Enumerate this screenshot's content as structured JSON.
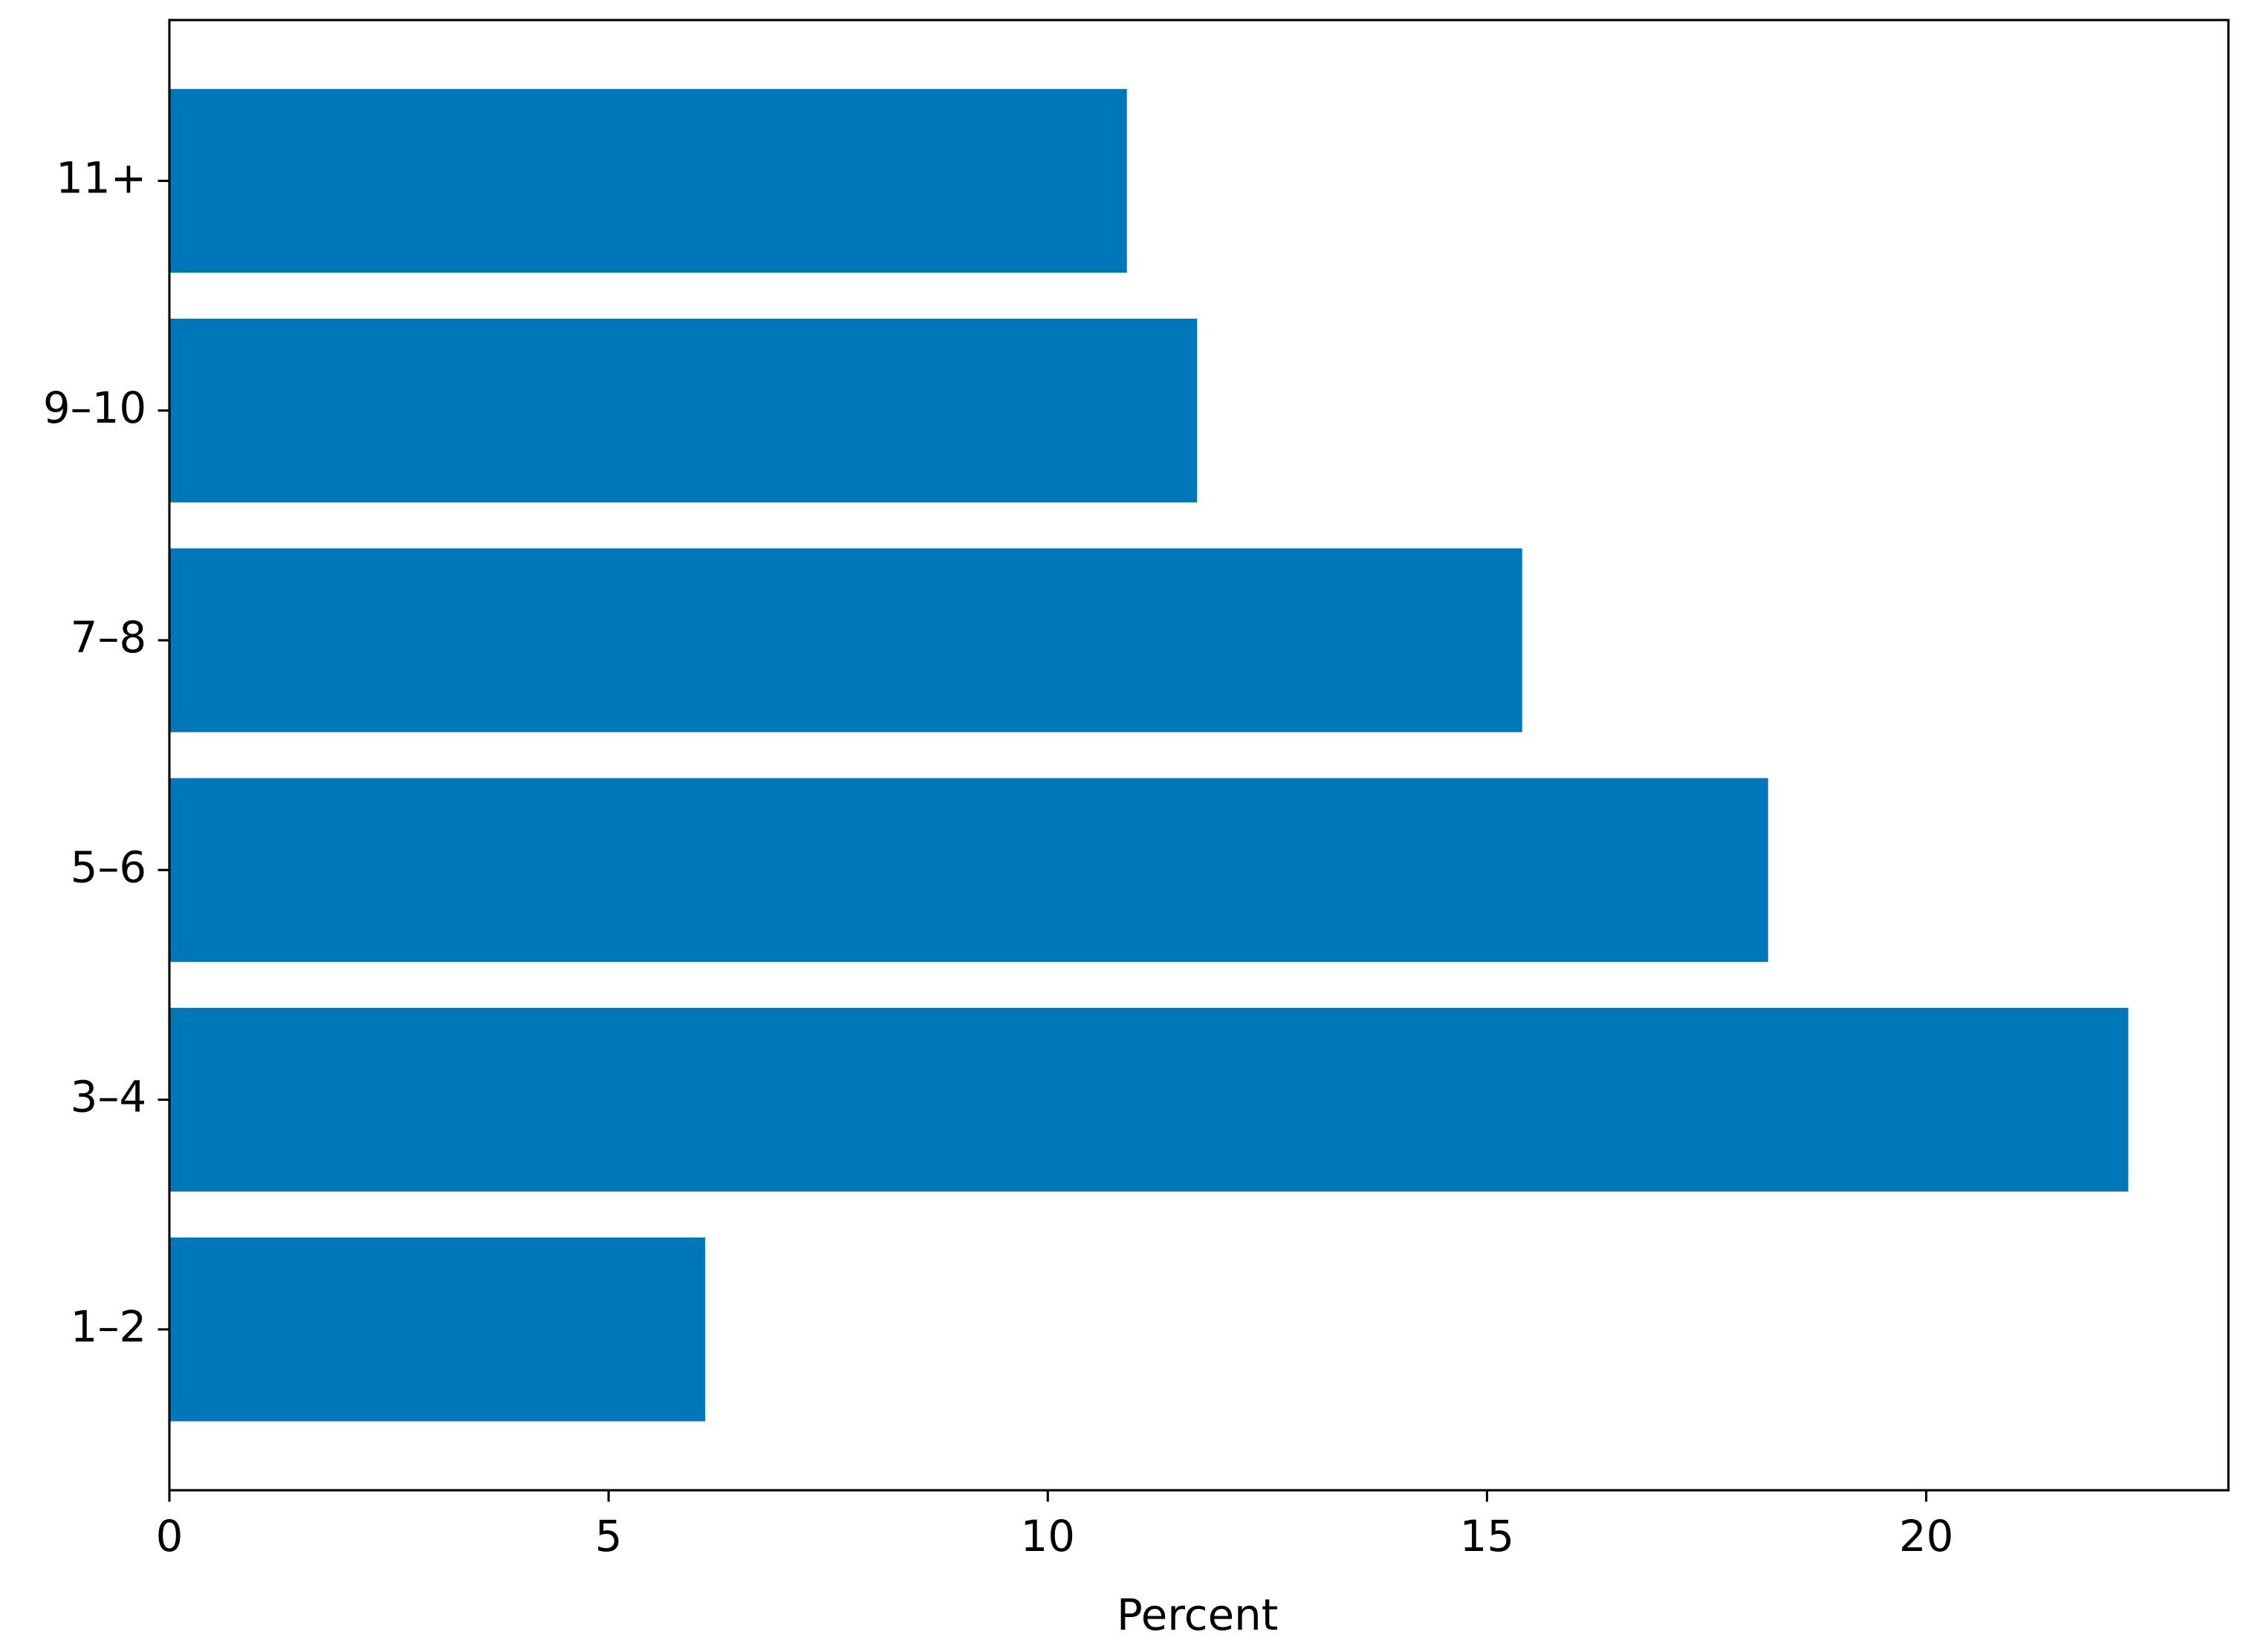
{
  "chart_data": {
    "type": "barh",
    "categories": [
      "1–2",
      "3–4",
      "5–6",
      "7–8",
      "9–10",
      "11+"
    ],
    "values": [
      6.1,
      22.3,
      18.2,
      15.4,
      11.7,
      10.9
    ],
    "color": "#0077b8",
    "xlabel": "Percent",
    "xlim": [
      0,
      23.44
    ],
    "xticks": [
      0,
      5,
      10,
      15,
      20
    ],
    "grid": false
  }
}
